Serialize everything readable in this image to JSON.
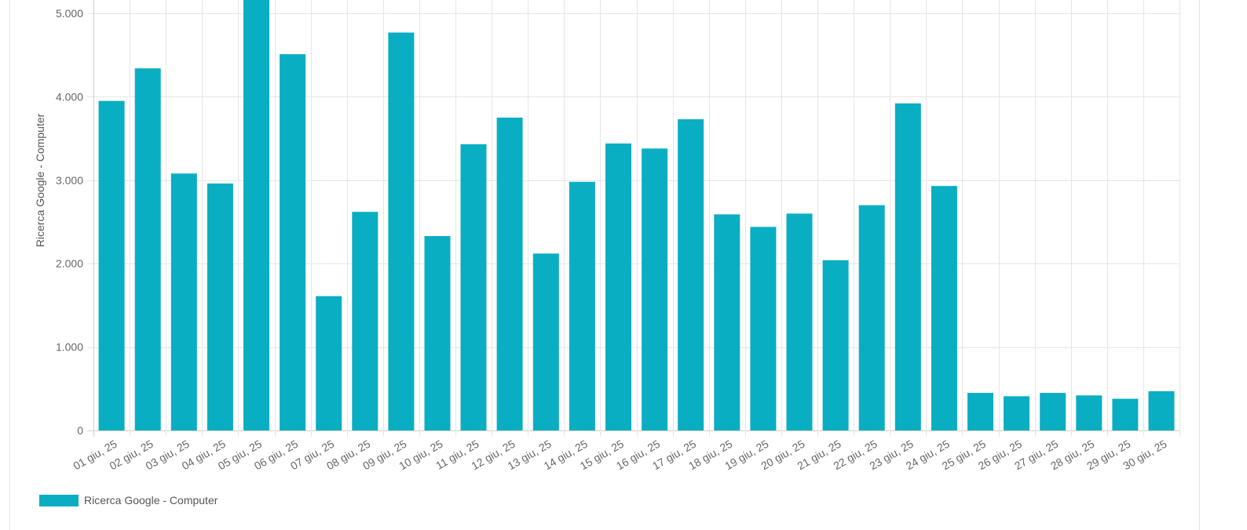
{
  "chart_data": {
    "type": "bar",
    "ylabel": "Ricerca Google - Computer",
    "xlabel": "",
    "ylim": [
      0,
      5000
    ],
    "yticks": [
      0,
      1000,
      2000,
      3000,
      4000,
      5000
    ],
    "ytick_labels": [
      "0",
      "1.000",
      "2.000",
      "3.000",
      "4.000",
      "5.000"
    ],
    "grid": true,
    "legend_position": "bottom-left",
    "color": "#0AAEC2",
    "categories": [
      "01 giu, 25",
      "02 giu, 25",
      "03 giu, 25",
      "04 giu, 25",
      "05 giu, 25",
      "06 giu, 25",
      "07 giu, 25",
      "08 giu, 25",
      "09 giu, 25",
      "10 giu, 25",
      "11 giu, 25",
      "12 giu, 25",
      "13 giu, 25",
      "14 giu, 25",
      "15 giu, 25",
      "16 giu, 25",
      "17 giu, 25",
      "18 giu, 25",
      "19 giu, 25",
      "20 giu, 25",
      "21 giu, 25",
      "22 giu, 25",
      "23 giu, 25",
      "24 giu, 25",
      "25 giu, 25",
      "26 giu, 25",
      "27 giu, 25",
      "28 giu, 25",
      "29 giu, 25",
      "30 giu, 25"
    ],
    "series": [
      {
        "name": "Ricerca Google - Computer",
        "values": [
          3950,
          4340,
          3080,
          2960,
          5180,
          4510,
          1610,
          2620,
          4770,
          2330,
          3430,
          3750,
          2120,
          2980,
          3440,
          3380,
          3730,
          2590,
          2440,
          2600,
          2040,
          2700,
          3920,
          2930,
          450,
          410,
          450,
          420,
          380,
          470
        ]
      }
    ]
  }
}
